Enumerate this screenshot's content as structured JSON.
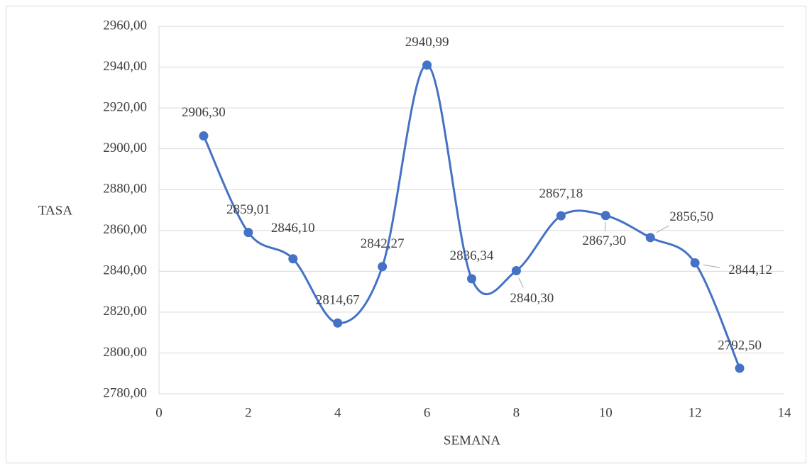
{
  "chart_data": {
    "type": "scatter",
    "x_label": "SEMANA",
    "y_label": "TASA",
    "x": [
      1,
      2,
      3,
      4,
      5,
      6,
      7,
      8,
      9,
      10,
      11,
      12,
      13
    ],
    "series": [
      {
        "color": "#4472c4",
        "values": [
          2906.3,
          2859.01,
          2846.1,
          2814.67,
          2842.27,
          2940.99,
          2836.34,
          2840.3,
          2867.18,
          2867.3,
          2856.5,
          2844.12,
          2792.5
        ],
        "value_labels": [
          "2906,30",
          "2859,01",
          "2846,10",
          "2814,67",
          "2842,27",
          "2940,99",
          "2836,34",
          "2840,30",
          "2867,18",
          "2867,30",
          "2856,50",
          "2844,12",
          "2792,50"
        ]
      }
    ],
    "xlim": [
      0,
      14
    ],
    "xticks": [
      0,
      2,
      4,
      6,
      8,
      10,
      12,
      14
    ],
    "ylim": [
      2780,
      2960
    ],
    "yticks": [
      {
        "value": 2780,
        "label": "2780,00"
      },
      {
        "value": 2800,
        "label": "2800,00"
      },
      {
        "value": 2820,
        "label": "2820,00"
      },
      {
        "value": 2840,
        "label": "2840,00"
      },
      {
        "value": 2860,
        "label": "2860,00"
      },
      {
        "value": 2880,
        "label": "2880,00"
      },
      {
        "value": 2900,
        "label": "2900,00"
      },
      {
        "value": 2920,
        "label": "2920,00"
      },
      {
        "value": 2940,
        "label": "2940,00"
      },
      {
        "value": 2960,
        "label": "2960,00"
      }
    ],
    "grid": true,
    "smooth": true
  }
}
